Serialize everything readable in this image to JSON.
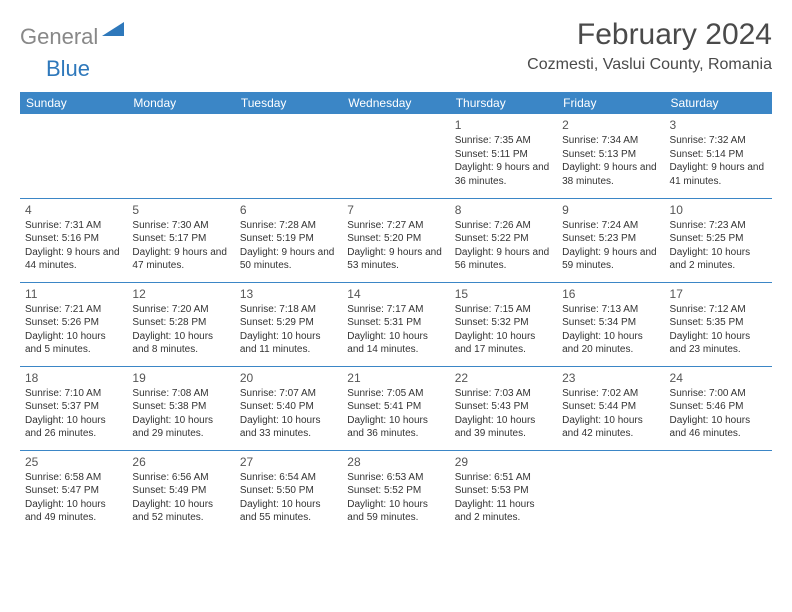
{
  "logo": {
    "gray": "General",
    "blue": "Blue"
  },
  "title": "February 2024",
  "location": "Cozmesti, Vaslui County, Romania",
  "headers": [
    "Sunday",
    "Monday",
    "Tuesday",
    "Wednesday",
    "Thursday",
    "Friday",
    "Saturday"
  ],
  "colors": {
    "header_bg": "#3b86c6",
    "header_text": "#ffffff",
    "divider": "#3b86c6",
    "text": "#333333",
    "logo_gray": "#888888",
    "logo_blue": "#2e78bb"
  },
  "weeks": [
    [
      null,
      null,
      null,
      null,
      {
        "n": "1",
        "sr": "Sunrise: 7:35 AM",
        "ss": "Sunset: 5:11 PM",
        "dl": "Daylight: 9 hours and 36 minutes."
      },
      {
        "n": "2",
        "sr": "Sunrise: 7:34 AM",
        "ss": "Sunset: 5:13 PM",
        "dl": "Daylight: 9 hours and 38 minutes."
      },
      {
        "n": "3",
        "sr": "Sunrise: 7:32 AM",
        "ss": "Sunset: 5:14 PM",
        "dl": "Daylight: 9 hours and 41 minutes."
      }
    ],
    [
      {
        "n": "4",
        "sr": "Sunrise: 7:31 AM",
        "ss": "Sunset: 5:16 PM",
        "dl": "Daylight: 9 hours and 44 minutes."
      },
      {
        "n": "5",
        "sr": "Sunrise: 7:30 AM",
        "ss": "Sunset: 5:17 PM",
        "dl": "Daylight: 9 hours and 47 minutes."
      },
      {
        "n": "6",
        "sr": "Sunrise: 7:28 AM",
        "ss": "Sunset: 5:19 PM",
        "dl": "Daylight: 9 hours and 50 minutes."
      },
      {
        "n": "7",
        "sr": "Sunrise: 7:27 AM",
        "ss": "Sunset: 5:20 PM",
        "dl": "Daylight: 9 hours and 53 minutes."
      },
      {
        "n": "8",
        "sr": "Sunrise: 7:26 AM",
        "ss": "Sunset: 5:22 PM",
        "dl": "Daylight: 9 hours and 56 minutes."
      },
      {
        "n": "9",
        "sr": "Sunrise: 7:24 AM",
        "ss": "Sunset: 5:23 PM",
        "dl": "Daylight: 9 hours and 59 minutes."
      },
      {
        "n": "10",
        "sr": "Sunrise: 7:23 AM",
        "ss": "Sunset: 5:25 PM",
        "dl": "Daylight: 10 hours and 2 minutes."
      }
    ],
    [
      {
        "n": "11",
        "sr": "Sunrise: 7:21 AM",
        "ss": "Sunset: 5:26 PM",
        "dl": "Daylight: 10 hours and 5 minutes."
      },
      {
        "n": "12",
        "sr": "Sunrise: 7:20 AM",
        "ss": "Sunset: 5:28 PM",
        "dl": "Daylight: 10 hours and 8 minutes."
      },
      {
        "n": "13",
        "sr": "Sunrise: 7:18 AM",
        "ss": "Sunset: 5:29 PM",
        "dl": "Daylight: 10 hours and 11 minutes."
      },
      {
        "n": "14",
        "sr": "Sunrise: 7:17 AM",
        "ss": "Sunset: 5:31 PM",
        "dl": "Daylight: 10 hours and 14 minutes."
      },
      {
        "n": "15",
        "sr": "Sunrise: 7:15 AM",
        "ss": "Sunset: 5:32 PM",
        "dl": "Daylight: 10 hours and 17 minutes."
      },
      {
        "n": "16",
        "sr": "Sunrise: 7:13 AM",
        "ss": "Sunset: 5:34 PM",
        "dl": "Daylight: 10 hours and 20 minutes."
      },
      {
        "n": "17",
        "sr": "Sunrise: 7:12 AM",
        "ss": "Sunset: 5:35 PM",
        "dl": "Daylight: 10 hours and 23 minutes."
      }
    ],
    [
      {
        "n": "18",
        "sr": "Sunrise: 7:10 AM",
        "ss": "Sunset: 5:37 PM",
        "dl": "Daylight: 10 hours and 26 minutes."
      },
      {
        "n": "19",
        "sr": "Sunrise: 7:08 AM",
        "ss": "Sunset: 5:38 PM",
        "dl": "Daylight: 10 hours and 29 minutes."
      },
      {
        "n": "20",
        "sr": "Sunrise: 7:07 AM",
        "ss": "Sunset: 5:40 PM",
        "dl": "Daylight: 10 hours and 33 minutes."
      },
      {
        "n": "21",
        "sr": "Sunrise: 7:05 AM",
        "ss": "Sunset: 5:41 PM",
        "dl": "Daylight: 10 hours and 36 minutes."
      },
      {
        "n": "22",
        "sr": "Sunrise: 7:03 AM",
        "ss": "Sunset: 5:43 PM",
        "dl": "Daylight: 10 hours and 39 minutes."
      },
      {
        "n": "23",
        "sr": "Sunrise: 7:02 AM",
        "ss": "Sunset: 5:44 PM",
        "dl": "Daylight: 10 hours and 42 minutes."
      },
      {
        "n": "24",
        "sr": "Sunrise: 7:00 AM",
        "ss": "Sunset: 5:46 PM",
        "dl": "Daylight: 10 hours and 46 minutes."
      }
    ],
    [
      {
        "n": "25",
        "sr": "Sunrise: 6:58 AM",
        "ss": "Sunset: 5:47 PM",
        "dl": "Daylight: 10 hours and 49 minutes."
      },
      {
        "n": "26",
        "sr": "Sunrise: 6:56 AM",
        "ss": "Sunset: 5:49 PM",
        "dl": "Daylight: 10 hours and 52 minutes."
      },
      {
        "n": "27",
        "sr": "Sunrise: 6:54 AM",
        "ss": "Sunset: 5:50 PM",
        "dl": "Daylight: 10 hours and 55 minutes."
      },
      {
        "n": "28",
        "sr": "Sunrise: 6:53 AM",
        "ss": "Sunset: 5:52 PM",
        "dl": "Daylight: 10 hours and 59 minutes."
      },
      {
        "n": "29",
        "sr": "Sunrise: 6:51 AM",
        "ss": "Sunset: 5:53 PM",
        "dl": "Daylight: 11 hours and 2 minutes."
      },
      null,
      null
    ]
  ]
}
